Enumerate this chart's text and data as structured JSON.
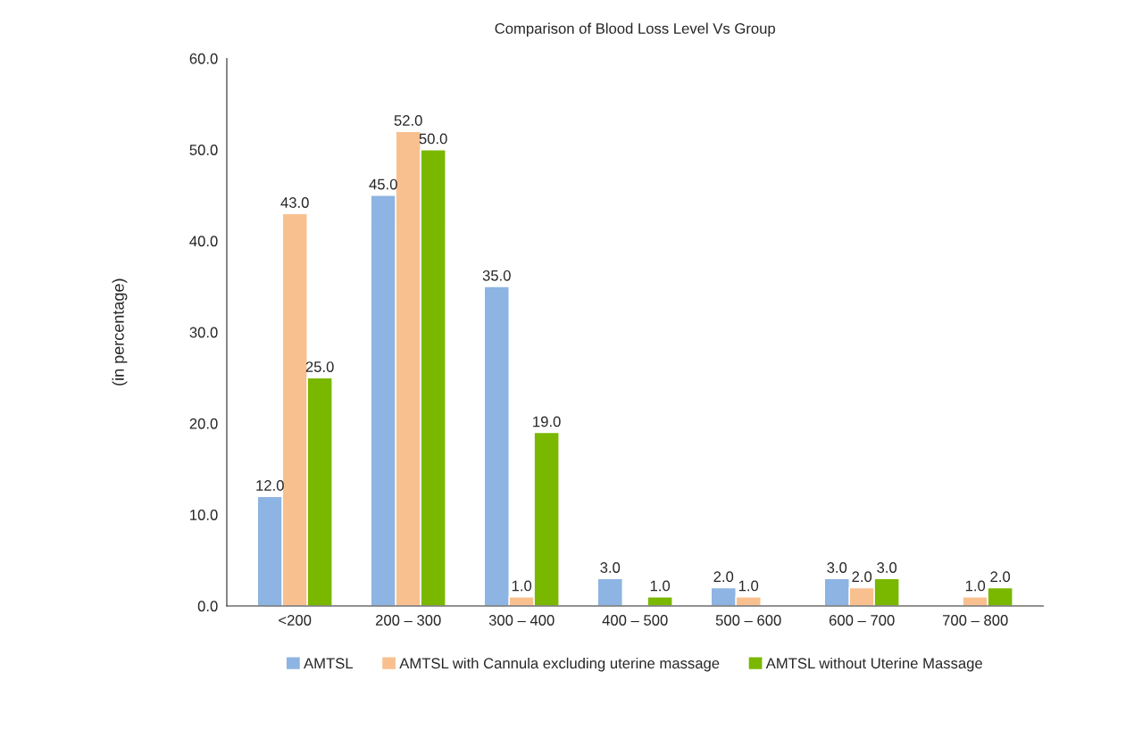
{
  "chart_data": {
    "type": "bar",
    "title": "Comparison of Blood Loss Level Vs Group",
    "ylabel": "(in percentage)",
    "categories": [
      "<200",
      "200 – 300",
      "300 – 400",
      "400 – 500",
      "500 – 600",
      "600 – 700",
      "700 – 800"
    ],
    "series": [
      {
        "name": "AMTSL",
        "color": "#8db4e2",
        "values": [
          12,
          45,
          35,
          3,
          2,
          3,
          null
        ],
        "value_labels": [
          "12.0",
          "45.0",
          "35.0",
          "3.0",
          "2.0",
          "3.0",
          null
        ]
      },
      {
        "name": "AMTSL with Cannula excluding uterine massage",
        "color": "#f9c08f",
        "values": [
          43,
          52,
          1,
          null,
          1,
          2,
          1
        ],
        "value_labels": [
          "43.0",
          "52.0",
          "1.0",
          null,
          "1.0",
          "2.0",
          "1.0"
        ]
      },
      {
        "name": "AMTSL without Uterine Massage",
        "color": "#7ab800",
        "values": [
          25,
          50,
          19,
          1,
          null,
          3,
          2
        ],
        "value_labels": [
          "25.0",
          "50.0",
          "19.0",
          "1.0",
          null,
          "3.0",
          "2.0"
        ]
      }
    ],
    "ylim": [
      0,
      60
    ],
    "yticks": [
      {
        "value": 0,
        "label": "0.0"
      },
      {
        "value": 10,
        "label": "10.0"
      },
      {
        "value": 20,
        "label": "20.0"
      },
      {
        "value": 30,
        "label": "30.0"
      },
      {
        "value": 40,
        "label": "40.0"
      },
      {
        "value": 50,
        "label": "50.0"
      },
      {
        "value": 60,
        "label": "60.0"
      }
    ],
    "grid": false,
    "legend": "bottom"
  }
}
